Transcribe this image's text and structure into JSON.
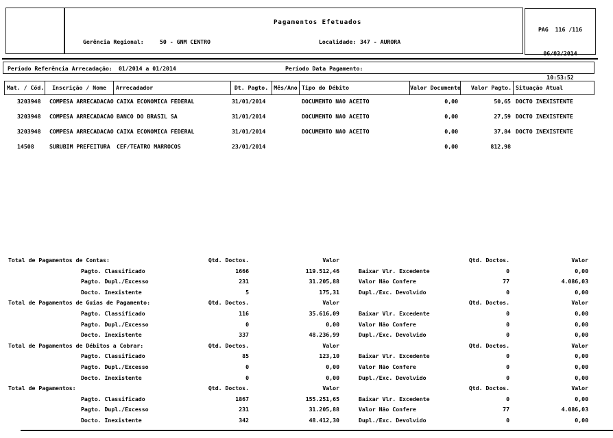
{
  "header": {
    "title": "Pagamentos Efetuados",
    "gerencia_label": "Gerência Regional:",
    "gerencia_value": "50 - GNM CENTRO",
    "localidade_label": "Localidade:",
    "localidade_value": "347 - AURORA",
    "page_label": "PAG  116 /116",
    "date": "06/03/2014",
    "time": "10:53:52"
  },
  "periodo": {
    "referencia_label": "Período Referência Arrecadação:",
    "referencia_value": "01/2014 a 01/2014",
    "pagamento_label": "Período Data Pagamento:"
  },
  "table": {
    "columns": [
      "Mat. / Cód.",
      "Inscrição / Nome",
      "Arrecadador",
      "Dt. Pagto.",
      "Mês/Ano",
      "Tipo do Débito",
      "Valor Documento",
      "Valor Pagto.",
      "Situação Atual"
    ],
    "rows": [
      {
        "mat": "3203948",
        "inscricao": "COMPESA ARRECADACAO",
        "arrecadador": "CAIXA ECONOMICA FEDERAL",
        "dt_pagto": "31/01/2014",
        "mes_ano": "",
        "tipo_debito": "DOCUMENTO NAO ACEITO",
        "valor_documento": "0,00",
        "valor_pagto": "50,65",
        "situacao": "DOCTO INEXISTENTE"
      },
      {
        "mat": "3203948",
        "inscricao": "COMPESA ARRECADACAO",
        "arrecadador": "BANCO DO BRASIL SA",
        "dt_pagto": "31/01/2014",
        "mes_ano": "",
        "tipo_debito": "DOCUMENTO NAO ACEITO",
        "valor_documento": "0,00",
        "valor_pagto": "27,59",
        "situacao": "DOCTO INEXISTENTE"
      },
      {
        "mat": "3203948",
        "inscricao": "COMPESA ARRECADACAO",
        "arrecadador": "CAIXA ECONOMICA FEDERAL",
        "dt_pagto": "31/01/2014",
        "mes_ano": "",
        "tipo_debito": "DOCUMENTO NAO ACEITO",
        "valor_documento": "0,00",
        "valor_pagto": "37,84",
        "situacao": "DOCTO INEXISTENTE"
      },
      {
        "mat": "14508",
        "inscricao": "SURUBIM PREFEITURA",
        "arrecadador": "CEF/TEATRO MARROCOS",
        "dt_pagto": "23/01/2014",
        "mes_ano": "",
        "tipo_debito": "",
        "valor_documento": "0,00",
        "valor_pagto": "812,98",
        "situacao": ""
      }
    ]
  },
  "totals": {
    "qtd_header": "Qtd. Doctos.",
    "valor_header": "Valor",
    "groups": [
      {
        "title": "Total de Pagamentos de Contas:",
        "left": [
          {
            "label": "Pagto. Classificado",
            "qtd": "1666",
            "valor": "119.512,46"
          },
          {
            "label": "Pagto. Dupl./Excesso",
            "qtd": "231",
            "valor": "31.205,88"
          },
          {
            "label": "Docto. Inexistente",
            "qtd": "5",
            "valor": "175,31"
          }
        ],
        "right": [
          {
            "label": "Baixar Vlr. Excedente",
            "qtd": "0",
            "valor": "0,00"
          },
          {
            "label": "Valor Não Confere",
            "qtd": "77",
            "valor": "4.086,03"
          },
          {
            "label": "Dupl./Exc. Devolvido",
            "qtd": "0",
            "valor": "0,00"
          }
        ]
      },
      {
        "title": "Total de Pagamentos de Guias de Pagamento:",
        "left": [
          {
            "label": "Pagto. Classificado",
            "qtd": "116",
            "valor": "35.616,09"
          },
          {
            "label": "Pagto. Dupl./Excesso",
            "qtd": "0",
            "valor": "0,00"
          },
          {
            "label": "Docto. Inexistente",
            "qtd": "337",
            "valor": "48.236,99"
          }
        ],
        "right": [
          {
            "label": "Baixar Vlr. Excedente",
            "qtd": "0",
            "valor": "0,00"
          },
          {
            "label": "Valor Não Confere",
            "qtd": "0",
            "valor": "0,00"
          },
          {
            "label": "Dupl./Exc. Devolvido",
            "qtd": "0",
            "valor": "0,00"
          }
        ]
      },
      {
        "title": "Total de Pagamentos de Débitos a Cobrar:",
        "left": [
          {
            "label": "Pagto. Classificado",
            "qtd": "85",
            "valor": "123,10"
          },
          {
            "label": "Pagto. Dupl./Excesso",
            "qtd": "0",
            "valor": "0,00"
          },
          {
            "label": "Docto. Inexistente",
            "qtd": "0",
            "valor": "0,00"
          }
        ],
        "right": [
          {
            "label": "Baixar Vlr. Excedente",
            "qtd": "0",
            "valor": "0,00"
          },
          {
            "label": "Valor Não Confere",
            "qtd": "0",
            "valor": "0,00"
          },
          {
            "label": "Dupl./Exc. Devolvido",
            "qtd": "0",
            "valor": "0,00"
          }
        ]
      },
      {
        "title": "Total de Pagamentos:",
        "left": [
          {
            "label": "Pagto. Classificado",
            "qtd": "1867",
            "valor": "155.251,65"
          },
          {
            "label": "Pagto. Dupl./Excesso",
            "qtd": "231",
            "valor": "31.205,88"
          },
          {
            "label": "Docto. Inexistente",
            "qtd": "342",
            "valor": "48.412,30"
          }
        ],
        "right": [
          {
            "label": "Baixar Vlr. Excedente",
            "qtd": "0",
            "valor": "0,00"
          },
          {
            "label": "Valor Não Confere",
            "qtd": "77",
            "valor": "4.086,03"
          },
          {
            "label": "Dupl./Exc. Devolvido",
            "qtd": "0",
            "valor": "0,00"
          }
        ]
      }
    ]
  },
  "colors": {
    "background": "#ffffff",
    "text": "#000000",
    "border": "#222222"
  }
}
